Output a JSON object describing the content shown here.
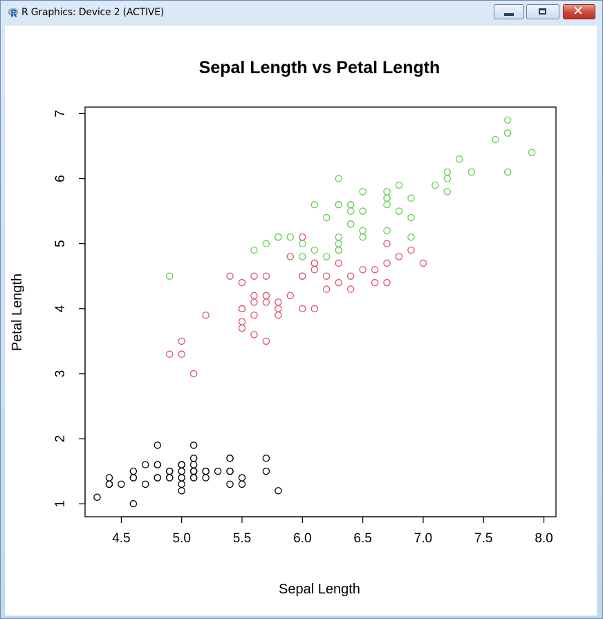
{
  "window": {
    "title": "R Graphics: Device 2 (ACTIVE)",
    "controls": {
      "minimize_icon": "minimize-icon",
      "maximize_icon": "maximize-icon",
      "close_icon": "close-icon",
      "close_glyph": "✕"
    },
    "app_icon": "r-logo-icon"
  },
  "chart_data": {
    "type": "scatter",
    "title": "Sepal Length vs Petal Length",
    "xlabel": "Sepal Length",
    "ylabel": "Petal Length",
    "xlim": [
      4.2,
      8.1
    ],
    "ylim": [
      0.8,
      7.1
    ],
    "x_ticks": [
      {
        "value": 4.5,
        "label": "4.5"
      },
      {
        "value": 5.0,
        "label": "5.0"
      },
      {
        "value": 5.5,
        "label": "5.5"
      },
      {
        "value": 6.0,
        "label": "6.0"
      },
      {
        "value": 6.5,
        "label": "6.5"
      },
      {
        "value": 7.0,
        "label": "7.0"
      },
      {
        "value": 7.5,
        "label": "7.5"
      },
      {
        "value": 8.0,
        "label": "8.0"
      }
    ],
    "y_ticks": [
      {
        "value": 1,
        "label": "1"
      },
      {
        "value": 2,
        "label": "2"
      },
      {
        "value": 3,
        "label": "3"
      },
      {
        "value": 4,
        "label": "4"
      },
      {
        "value": 5,
        "label": "5"
      },
      {
        "value": 6,
        "label": "6"
      },
      {
        "value": 7,
        "label": "7"
      }
    ],
    "grid": false,
    "legend": "none",
    "marker": "open-circle",
    "series": [
      {
        "color": "#000000",
        "points": [
          [
            5.1,
            1.4
          ],
          [
            4.9,
            1.4
          ],
          [
            4.7,
            1.3
          ],
          [
            4.6,
            1.5
          ],
          [
            5.0,
            1.4
          ],
          [
            5.4,
            1.7
          ],
          [
            4.6,
            1.4
          ],
          [
            5.0,
            1.5
          ],
          [
            4.4,
            1.4
          ],
          [
            4.9,
            1.5
          ],
          [
            5.4,
            1.5
          ],
          [
            4.8,
            1.6
          ],
          [
            4.8,
            1.4
          ],
          [
            4.3,
            1.1
          ],
          [
            5.8,
            1.2
          ],
          [
            5.7,
            1.5
          ],
          [
            5.4,
            1.3
          ],
          [
            5.1,
            1.4
          ],
          [
            5.7,
            1.7
          ],
          [
            5.1,
            1.5
          ],
          [
            5.4,
            1.7
          ],
          [
            5.1,
            1.5
          ],
          [
            4.6,
            1.0
          ],
          [
            5.1,
            1.7
          ],
          [
            4.8,
            1.9
          ],
          [
            5.0,
            1.6
          ],
          [
            5.0,
            1.6
          ],
          [
            5.2,
            1.5
          ],
          [
            5.2,
            1.4
          ],
          [
            4.7,
            1.6
          ],
          [
            4.8,
            1.6
          ],
          [
            5.4,
            1.5
          ],
          [
            5.2,
            1.5
          ],
          [
            5.5,
            1.4
          ],
          [
            4.9,
            1.5
          ],
          [
            5.0,
            1.2
          ],
          [
            5.5,
            1.3
          ],
          [
            4.9,
            1.4
          ],
          [
            4.4,
            1.3
          ],
          [
            5.1,
            1.5
          ],
          [
            5.0,
            1.3
          ],
          [
            4.5,
            1.3
          ],
          [
            4.4,
            1.3
          ],
          [
            5.0,
            1.6
          ],
          [
            5.1,
            1.9
          ],
          [
            4.8,
            1.4
          ],
          [
            5.1,
            1.6
          ],
          [
            4.6,
            1.4
          ],
          [
            5.3,
            1.5
          ],
          [
            5.0,
            1.4
          ]
        ]
      },
      {
        "color": "#df536b",
        "points": [
          [
            7.0,
            4.7
          ],
          [
            6.4,
            4.5
          ],
          [
            6.9,
            4.9
          ],
          [
            5.5,
            4.0
          ],
          [
            6.5,
            4.6
          ],
          [
            5.7,
            4.5
          ],
          [
            6.3,
            4.7
          ],
          [
            4.9,
            3.3
          ],
          [
            6.6,
            4.6
          ],
          [
            5.2,
            3.9
          ],
          [
            5.0,
            3.5
          ],
          [
            5.9,
            4.2
          ],
          [
            6.0,
            4.0
          ],
          [
            6.1,
            4.7
          ],
          [
            5.6,
            3.6
          ],
          [
            6.7,
            4.4
          ],
          [
            5.6,
            4.5
          ],
          [
            5.8,
            4.1
          ],
          [
            6.2,
            4.5
          ],
          [
            5.6,
            3.9
          ],
          [
            5.9,
            4.8
          ],
          [
            6.1,
            4.0
          ],
          [
            6.3,
            4.9
          ],
          [
            6.1,
            4.7
          ],
          [
            6.4,
            4.3
          ],
          [
            6.6,
            4.4
          ],
          [
            6.8,
            4.8
          ],
          [
            6.7,
            5.0
          ],
          [
            6.0,
            4.5
          ],
          [
            5.7,
            3.5
          ],
          [
            5.5,
            3.8
          ],
          [
            5.5,
            3.7
          ],
          [
            5.8,
            3.9
          ],
          [
            6.0,
            5.1
          ],
          [
            5.4,
            4.5
          ],
          [
            6.0,
            4.5
          ],
          [
            6.7,
            4.7
          ],
          [
            6.3,
            4.4
          ],
          [
            5.6,
            4.1
          ],
          [
            5.5,
            4.0
          ],
          [
            5.5,
            4.4
          ],
          [
            6.1,
            4.6
          ],
          [
            5.8,
            4.0
          ],
          [
            5.0,
            3.3
          ],
          [
            5.6,
            4.2
          ],
          [
            5.7,
            4.2
          ],
          [
            5.7,
            4.2
          ],
          [
            6.2,
            4.3
          ],
          [
            5.1,
            3.0
          ],
          [
            5.7,
            4.1
          ]
        ]
      },
      {
        "color": "#61d04f",
        "points": [
          [
            6.3,
            6.0
          ],
          [
            5.8,
            5.1
          ],
          [
            7.1,
            5.9
          ],
          [
            6.3,
            5.6
          ],
          [
            6.5,
            5.8
          ],
          [
            7.6,
            6.6
          ],
          [
            4.9,
            4.5
          ],
          [
            7.3,
            6.3
          ],
          [
            6.7,
            5.8
          ],
          [
            7.2,
            6.1
          ],
          [
            6.5,
            5.1
          ],
          [
            6.4,
            5.3
          ],
          [
            6.8,
            5.5
          ],
          [
            5.7,
            5.0
          ],
          [
            5.8,
            5.1
          ],
          [
            6.4,
            5.3
          ],
          [
            6.5,
            5.5
          ],
          [
            7.7,
            6.7
          ],
          [
            7.7,
            6.9
          ],
          [
            6.0,
            5.0
          ],
          [
            6.9,
            5.7
          ],
          [
            5.6,
            4.9
          ],
          [
            7.7,
            6.7
          ],
          [
            6.3,
            4.9
          ],
          [
            6.7,
            5.7
          ],
          [
            7.2,
            6.0
          ],
          [
            6.2,
            4.8
          ],
          [
            6.1,
            4.9
          ],
          [
            6.4,
            5.6
          ],
          [
            7.2,
            5.8
          ],
          [
            7.4,
            6.1
          ],
          [
            7.9,
            6.4
          ],
          [
            6.4,
            5.6
          ],
          [
            6.3,
            5.1
          ],
          [
            6.1,
            5.6
          ],
          [
            7.7,
            6.1
          ],
          [
            6.3,
            5.6
          ],
          [
            6.4,
            5.5
          ],
          [
            6.0,
            4.8
          ],
          [
            6.9,
            5.4
          ],
          [
            6.7,
            5.6
          ],
          [
            6.9,
            5.1
          ],
          [
            5.8,
            5.1
          ],
          [
            6.8,
            5.9
          ],
          [
            6.7,
            5.7
          ],
          [
            6.7,
            5.2
          ],
          [
            6.3,
            5.0
          ],
          [
            6.5,
            5.2
          ],
          [
            6.2,
            5.4
          ],
          [
            5.9,
            5.1
          ]
        ]
      }
    ]
  }
}
